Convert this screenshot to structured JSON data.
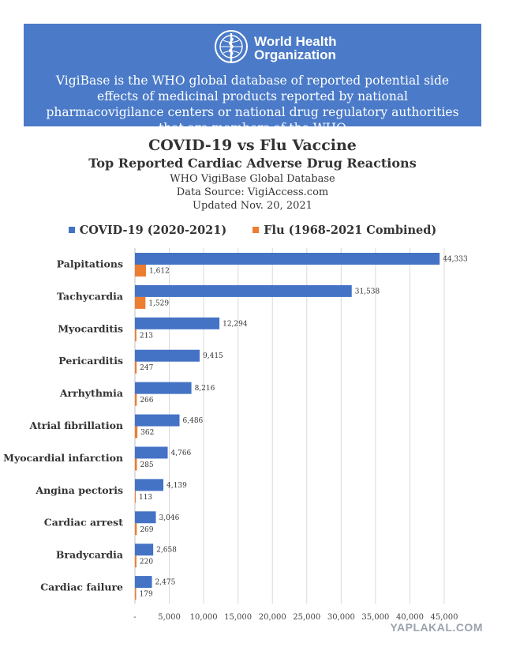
{
  "header": {
    "org_name_line1": "World Health",
    "org_name_line2": "Organization",
    "description": "VigiBase is the WHO global database of reported potential side effects of medicinal products reported by national pharmacovigilance centers or national drug regulatory authorities that are members of the WHO"
  },
  "chart_data": {
    "type": "bar",
    "orientation": "horizontal",
    "title": "COVID-19 vs Flu Vaccine",
    "subtitle": "Top Reported Cardiac Adverse Drug Reactions",
    "notes": [
      "WHO VigiBase Global Database",
      "Data Source: VigiAccess.com",
      "Updated Nov. 20, 2021"
    ],
    "categories": [
      "Palpitations",
      "Tachycardia",
      "Myocarditis",
      "Pericarditis",
      "Arrhythmia",
      "Atrial fibrillation",
      "Myocardial infarction",
      "Angina pectoris",
      "Cardiac arrest",
      "Bradycardia",
      "Cardiac failure"
    ],
    "series": [
      {
        "name": "COVID-19 (2020-2021)",
        "color": "#4472c4",
        "values": [
          44333,
          31538,
          12294,
          9415,
          8216,
          6486,
          4766,
          4139,
          3046,
          2658,
          2475
        ]
      },
      {
        "name": "Flu (1968-2021 Combined)",
        "color": "#ed7d31",
        "values": [
          1612,
          1529,
          213,
          247,
          266,
          362,
          285,
          113,
          269,
          220,
          179
        ]
      }
    ],
    "data_labels": [
      [
        "44,333",
        "31,538",
        "12,294",
        "9,415",
        "8,216",
        "6,486",
        "4,766",
        "4,139",
        "3,046",
        "2,658",
        "2,475"
      ],
      [
        "1,612",
        "1,529",
        "213",
        "247",
        "266",
        "362",
        "285",
        "113",
        "269",
        "220",
        "179"
      ]
    ],
    "xlim": [
      0,
      45000
    ],
    "xticks": [
      0,
      5000,
      10000,
      15000,
      20000,
      25000,
      30000,
      35000,
      40000,
      45000
    ],
    "xtick_labels": [
      "-",
      "5,000",
      "10,000",
      "15,000",
      "20,000",
      "25,000",
      "30,000",
      "35,000",
      "40,000",
      "45,000"
    ],
    "grid": "vertical",
    "legend": "top-center"
  },
  "watermark": "YAPLAKAL.COM"
}
